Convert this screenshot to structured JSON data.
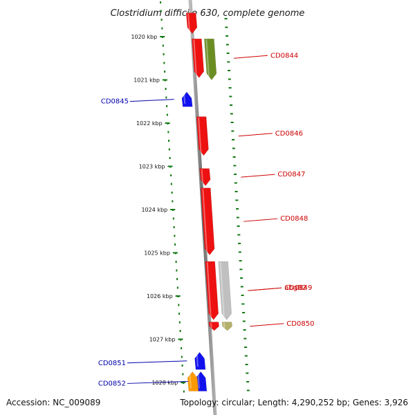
{
  "title": "Clostridium difficile 630, complete genome",
  "footer": {
    "accession": "Accession: NC_009089",
    "summary": "Topology: circular; Length: 4,290,252 bp; Genes: 3,926"
  },
  "colors": {
    "forward_label": "#cc0000",
    "reverse_label": "#0000aa",
    "ruler_tick": "#117711",
    "backbone": "#888888"
  },
  "kbp_ticks": [
    {
      "label": "1020 kbp",
      "kbp": 1020
    },
    {
      "label": "1021 kbp",
      "kbp": 1021
    },
    {
      "label": "1022 kbp",
      "kbp": 1022
    },
    {
      "label": "1023 kbp",
      "kbp": 1023
    },
    {
      "label": "1024 kbp",
      "kbp": 1024
    },
    {
      "label": "1025 kbp",
      "kbp": 1025
    },
    {
      "label": "1026 kbp",
      "kbp": 1026
    },
    {
      "label": "1027 kbp",
      "kbp": 1027
    },
    {
      "label": "1028 kbp",
      "kbp": 1028
    }
  ],
  "genes": [
    {
      "label": "",
      "strand": "forward",
      "color": "#ee1111",
      "start_kbp": 1019.45,
      "end_kbp": 1019.93
    },
    {
      "label": "CD0844",
      "strand": "forward",
      "color": "#ee1111",
      "start_kbp": 1020.05,
      "end_kbp": 1020.95
    },
    {
      "label": "",
      "strand": "forward",
      "color": "#6b8e23",
      "start_kbp": 1020.05,
      "end_kbp": 1021.0
    },
    {
      "label": "CD0845",
      "strand": "reverse",
      "color": "#1111ee",
      "start_kbp": 1021.28,
      "end_kbp": 1021.62
    },
    {
      "label": "CD0846",
      "strand": "forward",
      "color": "#ee1111",
      "start_kbp": 1021.85,
      "end_kbp": 1022.75
    },
    {
      "label": "CD0847",
      "strand": "forward",
      "color": "#ee1111",
      "start_kbp": 1023.05,
      "end_kbp": 1023.45
    },
    {
      "label": "CD0848",
      "strand": "forward",
      "color": "#ee1111",
      "start_kbp": 1023.5,
      "end_kbp": 1025.05
    },
    {
      "label": "CD0849",
      "strand": "forward",
      "color": "#ee1111",
      "start_kbp": 1025.2,
      "end_kbp": 1026.55
    },
    {
      "label": "abgB2",
      "strand": "forward",
      "color": "#c0c0c0",
      "start_kbp": 1025.2,
      "end_kbp": 1026.55
    },
    {
      "label": "CD0850",
      "strand": "forward",
      "color": "#ee1111",
      "start_kbp": 1026.6,
      "end_kbp": 1026.8
    },
    {
      "label": "",
      "strand": "forward",
      "color": "#b5b06a",
      "start_kbp": 1026.6,
      "end_kbp": 1026.8
    },
    {
      "label": "CD0851",
      "strand": "reverse",
      "color": "#1111ee",
      "start_kbp": 1027.3,
      "end_kbp": 1027.7
    },
    {
      "label": "CD0852",
      "strand": "reverse",
      "color": "#1111ee",
      "start_kbp": 1027.75,
      "end_kbp": 1028.2
    },
    {
      "label": "",
      "strand": "reverse",
      "color": "#ff9900",
      "start_kbp": 1027.75,
      "end_kbp": 1028.2
    }
  ]
}
